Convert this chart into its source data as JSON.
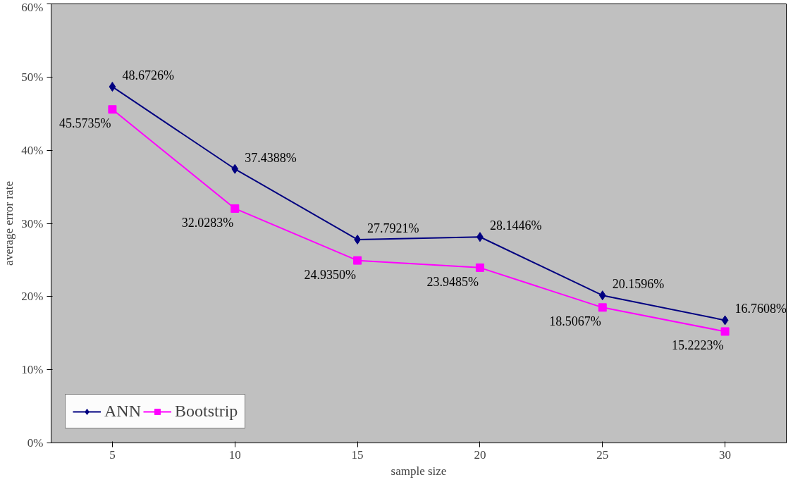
{
  "chart_data": {
    "type": "line",
    "xlabel": "sample size",
    "ylabel": "average error rate",
    "categories": [
      "5",
      "10",
      "15",
      "20",
      "25",
      "30"
    ],
    "ylim": [
      0,
      60
    ],
    "yticks": [
      {
        "value": 0,
        "label": "0%"
      },
      {
        "value": 10,
        "label": "10%"
      },
      {
        "value": 20,
        "label": "20%"
      },
      {
        "value": 30,
        "label": "30%"
      },
      {
        "value": 40,
        "label": "40%"
      },
      {
        "value": 50,
        "label": "50%"
      },
      {
        "value": 60,
        "label": "60%"
      }
    ],
    "grid": false,
    "legend": "bottom left",
    "series": [
      {
        "name": "ANN",
        "color": "#000080",
        "marker": "diamond",
        "values": [
          48.6726,
          37.4388,
          27.7921,
          28.1446,
          20.1596,
          16.7608
        ],
        "value_labels": [
          "48.6726%",
          "37.4388%",
          "27.7921%",
          "28.1446%",
          "20.1596%",
          "16.7608%"
        ]
      },
      {
        "name": "Bootstrip",
        "color": "#ff00ff",
        "marker": "square",
        "values": [
          45.5735,
          32.0283,
          24.935,
          23.9485,
          18.5067,
          15.2223
        ],
        "value_labels": [
          "45.5735%",
          "32.0283%",
          "24.9350%",
          "23.9485%",
          "18.5067%",
          "15.2223%"
        ]
      }
    ]
  }
}
